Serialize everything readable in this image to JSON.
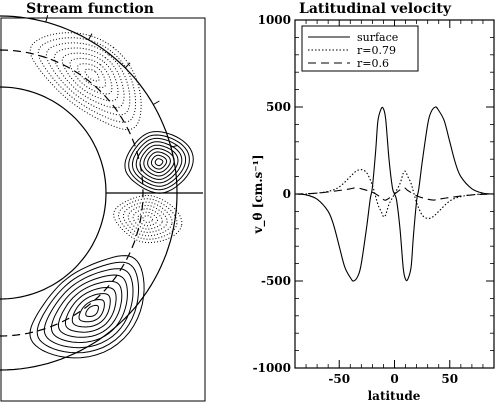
{
  "panels": {
    "left_title": "Stream function",
    "right_title": "Latitudinal velocity"
  },
  "chart_data": [
    {
      "type": "contour",
      "title": "Stream function",
      "geometry": "meridional half-annulus (inner radius ~0.6 R, outer radius 1 R), dashed line at r=0.79",
      "contour_sets": [
        {
          "location": "northern high latitude",
          "style": "dotted",
          "sign": "negative"
        },
        {
          "location": "northern low latitude",
          "style": "solid",
          "sign": "positive"
        },
        {
          "location": "southern low latitude",
          "style": "dotted",
          "sign": "negative"
        },
        {
          "location": "southern high latitude",
          "style": "solid",
          "sign": "positive"
        }
      ]
    },
    {
      "type": "line",
      "title": "Latitudinal velocity",
      "xlabel": "latitude",
      "ylabel": "v_θ [cm.s⁻¹]",
      "xlim": [
        -90,
        90
      ],
      "ylim": [
        -1000,
        1000
      ],
      "xticks": [
        -50,
        0,
        50
      ],
      "yticks": [
        -1000,
        -500,
        0,
        500,
        1000
      ],
      "legend_position": "top-left",
      "series": [
        {
          "name": "surface",
          "style": "solid",
          "x": [
            -90,
            -80,
            -70,
            -60,
            -55,
            -50,
            -45,
            -40,
            -37,
            -33,
            -30,
            -25,
            -22,
            -20,
            -17,
            -15,
            -12,
            -10,
            -8,
            -5,
            -2,
            0,
            2,
            5,
            8,
            10,
            12,
            15,
            17,
            20,
            22,
            25,
            30,
            33,
            37,
            40,
            45,
            50,
            55,
            60,
            70,
            80,
            90
          ],
          "y": [
            0,
            -5,
            -30,
            -100,
            -180,
            -300,
            -420,
            -480,
            -500,
            -470,
            -400,
            -180,
            -30,
            40,
            250,
            420,
            490,
            490,
            430,
            200,
            40,
            0,
            -40,
            -200,
            -430,
            -490,
            -490,
            -420,
            -250,
            -40,
            30,
            180,
            400,
            470,
            500,
            480,
            420,
            300,
            180,
            100,
            30,
            5,
            0
          ]
        },
        {
          "name": "r=0.79",
          "style": "dotted",
          "x": [
            -90,
            -80,
            -70,
            -60,
            -50,
            -40,
            -35,
            -30,
            -25,
            -20,
            -15,
            -12,
            -10,
            -8,
            -5,
            0,
            5,
            8,
            10,
            12,
            15,
            20,
            25,
            30,
            35,
            40,
            50,
            60,
            70,
            80,
            90
          ],
          "y": [
            0,
            0,
            5,
            15,
            40,
            100,
            130,
            140,
            120,
            50,
            -60,
            -100,
            -130,
            -120,
            -60,
            0,
            60,
            120,
            130,
            100,
            60,
            -50,
            -120,
            -140,
            -130,
            -100,
            -40,
            -15,
            -5,
            0,
            0
          ]
        },
        {
          "name": "r=0.6",
          "style": "dashed",
          "x": [
            -90,
            -70,
            -50,
            -40,
            -35,
            -30,
            -20,
            -12,
            -8,
            0,
            8,
            12,
            20,
            30,
            35,
            40,
            50,
            70,
            90
          ],
          "y": [
            0,
            5,
            20,
            30,
            35,
            30,
            10,
            -20,
            -35,
            0,
            35,
            20,
            -10,
            -30,
            -35,
            -30,
            -20,
            -5,
            0
          ]
        }
      ]
    }
  ]
}
